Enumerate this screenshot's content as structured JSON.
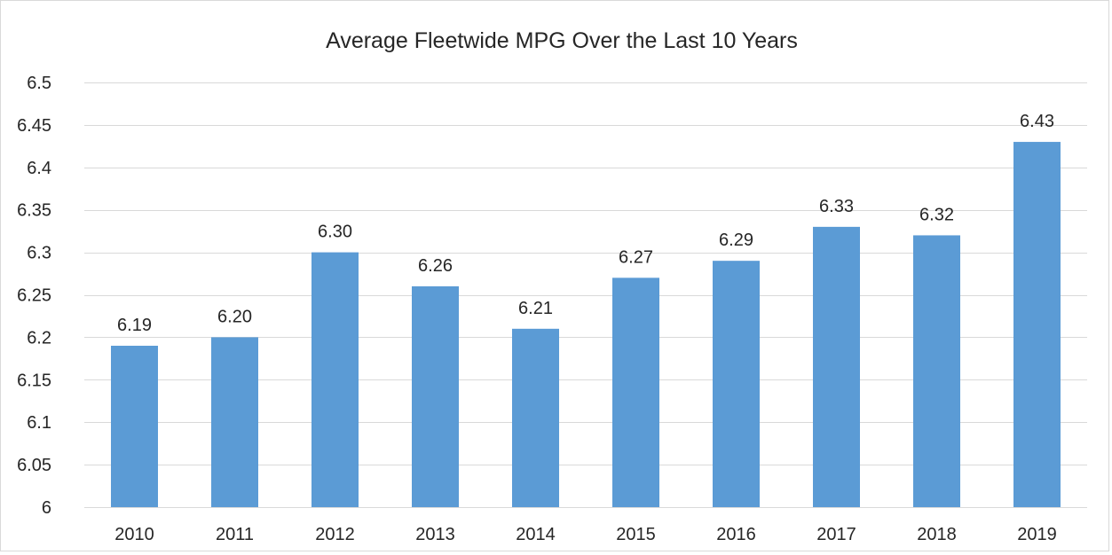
{
  "chart_data": {
    "type": "bar",
    "title": "Average Fleetwide MPG Over the Last 10 Years",
    "xlabel": "",
    "ylabel": "",
    "categories": [
      "2010",
      "2011",
      "2012",
      "2013",
      "2014",
      "2015",
      "2016",
      "2017",
      "2018",
      "2019"
    ],
    "values": [
      6.19,
      6.2,
      6.3,
      6.26,
      6.21,
      6.27,
      6.29,
      6.33,
      6.32,
      6.43
    ],
    "data_labels": [
      "6.19",
      "6.20",
      "6.30",
      "6.26",
      "6.21",
      "6.27",
      "6.29",
      "6.33",
      "6.32",
      "6.43"
    ],
    "ylim": [
      6,
      6.5
    ],
    "yticks": [
      6,
      6.05,
      6.1,
      6.15,
      6.2,
      6.25,
      6.3,
      6.35,
      6.4,
      6.45,
      6.5
    ],
    "ytick_labels": [
      "6",
      "6.05",
      "6.1",
      "6.15",
      "6.2",
      "6.25",
      "6.3",
      "6.35",
      "6.4",
      "6.45",
      "6.5"
    ],
    "grid": true,
    "legend": "none",
    "colors": {
      "bar": "#5b9bd5",
      "grid": "#d9d9d9",
      "text": "#262626",
      "border": "#d9d9d9"
    }
  }
}
